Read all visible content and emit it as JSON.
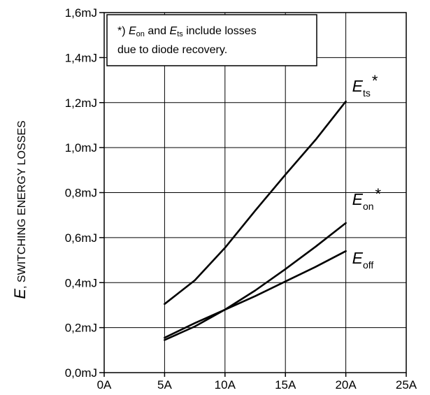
{
  "chart_data": {
    "type": "line",
    "title": "",
    "xlabel": "",
    "ylabel": {
      "symbol": "E",
      "text": ", SWITCHING ENERGY LOSSES"
    },
    "xlim": [
      0,
      25
    ],
    "ylim": [
      0.0,
      1.6
    ],
    "x_unit": "A",
    "y_unit": "mJ",
    "grid": true,
    "x_ticks": [
      0,
      5,
      10,
      15,
      20,
      25
    ],
    "x_tick_labels": [
      "0A",
      "5A",
      "10A",
      "15A",
      "20A",
      "25A"
    ],
    "y_ticks": [
      0.0,
      0.2,
      0.4,
      0.6,
      0.8,
      1.0,
      1.2,
      1.4,
      1.6
    ],
    "y_tick_labels": [
      "0,0mJ",
      "0,2mJ",
      "0,4mJ",
      "0,6mJ",
      "0,8mJ",
      "1,0mJ",
      "1,2mJ",
      "1,4mJ",
      "1,6mJ"
    ],
    "series": [
      {
        "name": "Ets*",
        "label_main": "E",
        "label_sub": "ts",
        "label_sup": "*",
        "x": [
          5,
          7.5,
          10,
          12.5,
          15,
          17.5,
          20
        ],
        "y": [
          0.305,
          0.41,
          0.555,
          0.72,
          0.88,
          1.035,
          1.205
        ]
      },
      {
        "name": "Eon*",
        "label_main": "E",
        "label_sub": "on",
        "label_sup": "*",
        "x": [
          5,
          7.5,
          10,
          12.5,
          15,
          17.5,
          20
        ],
        "y": [
          0.145,
          0.205,
          0.28,
          0.365,
          0.46,
          0.56,
          0.665
        ]
      },
      {
        "name": "Eoff",
        "label_main": "E",
        "label_sub": "off",
        "label_sup": "",
        "x": [
          5,
          7.5,
          10,
          12.5,
          15,
          17.5,
          20
        ],
        "y": [
          0.155,
          0.22,
          0.28,
          0.34,
          0.405,
          0.47,
          0.54
        ]
      }
    ],
    "annotation": {
      "line1_prefix": "*) ",
      "line1_e1": "E",
      "line1_e1_sub": "on",
      "line1_mid": " and ",
      "line1_e2": "E",
      "line1_e2_sub": "ts",
      "line1_suffix": " include losses",
      "line2": "due to diode recovery."
    }
  }
}
